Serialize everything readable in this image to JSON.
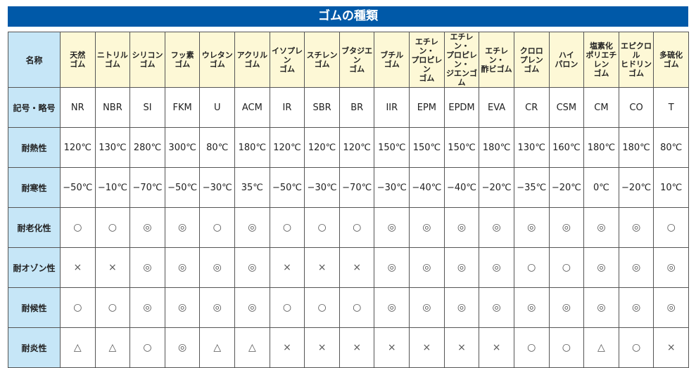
{
  "title": "ゴムの種類",
  "row_labels": [
    "名称",
    "記号・略号",
    "耐熱性",
    "耐寒性",
    "耐老化性",
    "耐オゾン性",
    "耐候性",
    "耐炎性"
  ],
  "rubbers": [
    {
      "name": "天然\nゴム",
      "code": "NR",
      "heat": "120℃",
      "cold": "−50℃",
      "aging": "○",
      "ozone": "×",
      "weather": "○",
      "flame": "△"
    },
    {
      "name": "ニトリル\nゴム",
      "code": "NBR",
      "heat": "130℃",
      "cold": "−10℃",
      "aging": "○",
      "ozone": "×",
      "weather": "○",
      "flame": "△"
    },
    {
      "name": "シリコン\nゴム",
      "code": "SI",
      "heat": "280℃",
      "cold": "−70℃",
      "aging": "◎",
      "ozone": "◎",
      "weather": "◎",
      "flame": "○"
    },
    {
      "name": "フッ素\nゴム",
      "code": "FKM",
      "heat": "300℃",
      "cold": "−50℃",
      "aging": "◎",
      "ozone": "◎",
      "weather": "◎",
      "flame": "◎"
    },
    {
      "name": "ウレタン\nゴム",
      "code": "U",
      "heat": "80℃",
      "cold": "−30℃",
      "aging": "○",
      "ozone": "◎",
      "weather": "◎",
      "flame": "△"
    },
    {
      "name": "アクリル\nゴム",
      "code": "ACM",
      "heat": "180℃",
      "cold": "35℃",
      "aging": "◎",
      "ozone": "◎",
      "weather": "◎",
      "flame": "△"
    },
    {
      "name": "イソプレン\nゴム",
      "code": "IR",
      "heat": "120℃",
      "cold": "−50℃",
      "aging": "○",
      "ozone": "×",
      "weather": "○",
      "flame": "×"
    },
    {
      "name": "スチレン\nゴム",
      "code": "SBR",
      "heat": "120℃",
      "cold": "−30℃",
      "aging": "○",
      "ozone": "×",
      "weather": "○",
      "flame": "×"
    },
    {
      "name": "ブタジエン\nゴム",
      "code": "BR",
      "heat": "120℃",
      "cold": "−70℃",
      "aging": "○",
      "ozone": "×",
      "weather": "○",
      "flame": "×"
    },
    {
      "name": "ブチル\nゴム",
      "code": "IIR",
      "heat": "150℃",
      "cold": "−30℃",
      "aging": "◎",
      "ozone": "◎",
      "weather": "◎",
      "flame": "×"
    },
    {
      "name": "エチレン・\nプロピレン\nゴム",
      "code": "EPM",
      "heat": "150℃",
      "cold": "−40℃",
      "aging": "◎",
      "ozone": "◎",
      "weather": "◎",
      "flame": "×"
    },
    {
      "name": "エチレン・\nプロピレン・\nジエンゴム",
      "code": "EPDM",
      "heat": "150℃",
      "cold": "−40℃",
      "aging": "◎",
      "ozone": "◎",
      "weather": "◎",
      "flame": "×"
    },
    {
      "name": "エチレン・\n酢ビゴム",
      "code": "EVA",
      "heat": "180℃",
      "cold": "−20℃",
      "aging": "◎",
      "ozone": "◎",
      "weather": "◎",
      "flame": "×"
    },
    {
      "name": "クロロ\nプレン\nゴム",
      "code": "CR",
      "heat": "130℃",
      "cold": "−35℃",
      "aging": "◎",
      "ozone": "○",
      "weather": "◎",
      "flame": "○"
    },
    {
      "name": "ハイ\nパロン",
      "code": "CSM",
      "heat": "160℃",
      "cold": "−20℃",
      "aging": "◎",
      "ozone": "○",
      "weather": "◎",
      "flame": "○"
    },
    {
      "name": "塩素化\nポリエチレン\nゴム",
      "code": "CM",
      "heat": "180℃",
      "cold": "0℃",
      "aging": "◎",
      "ozone": "◎",
      "weather": "◎",
      "flame": "△"
    },
    {
      "name": "エピクロル\nヒドリン\nゴム",
      "code": "CO",
      "heat": "180℃",
      "cold": "−20℃",
      "aging": "◎",
      "ozone": "◎",
      "weather": "◎",
      "flame": "○"
    },
    {
      "name": "多硫化\nゴム",
      "code": "T",
      "heat": "80℃",
      "cold": "10℃",
      "aging": "○",
      "ozone": "◎",
      "weather": "◎",
      "flame": "×"
    }
  ]
}
